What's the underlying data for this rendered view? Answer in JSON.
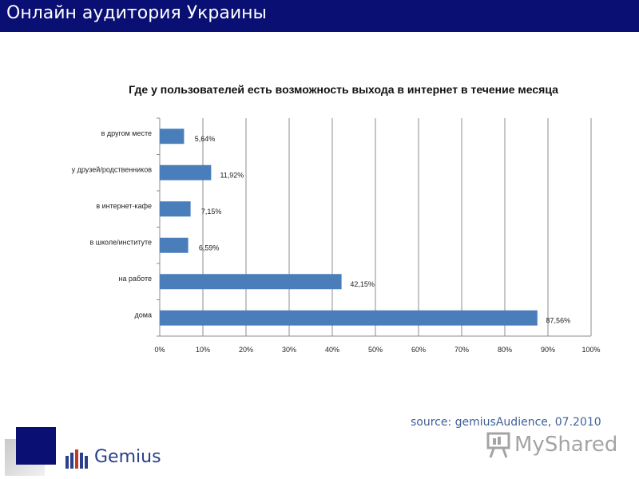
{
  "header": {
    "title": "Онлайн аудитория Украины"
  },
  "colors": {
    "header_bg": "#0a0f73",
    "bar": "#4a7ebb",
    "grid": "#8c8c8c",
    "source_text": "#3f5f99"
  },
  "source": {
    "text": "source: gemiusAudience, 07.2010"
  },
  "logo": {
    "name": "Gemius",
    "icon": "gemius-bars-icon"
  },
  "watermark": {
    "text": "MyShared",
    "icon": "presentation-board-icon"
  },
  "chart_data": {
    "type": "bar",
    "orientation": "horizontal",
    "title": "Где у пользователей есть возможность выхода в интернет в течение месяца",
    "xlabel": "",
    "ylabel": "",
    "categories": [
      "в другом месте",
      "у друзей/родственников",
      "в интернет-кафе",
      "в школе/институте",
      "на работе",
      "дома"
    ],
    "values": [
      5.64,
      11.92,
      7.15,
      6.59,
      42.15,
      87.56
    ],
    "data_labels": [
      "5,64%",
      "11,92%",
      "7,15%",
      "6,59%",
      "42,15%",
      "87,56%"
    ],
    "xlim": [
      0,
      100
    ],
    "x_ticks": [
      "0%",
      "10%",
      "20%",
      "30%",
      "40%",
      "50%",
      "60%",
      "70%",
      "80%",
      "90%",
      "100%"
    ],
    "grid": true,
    "legend": "none"
  }
}
